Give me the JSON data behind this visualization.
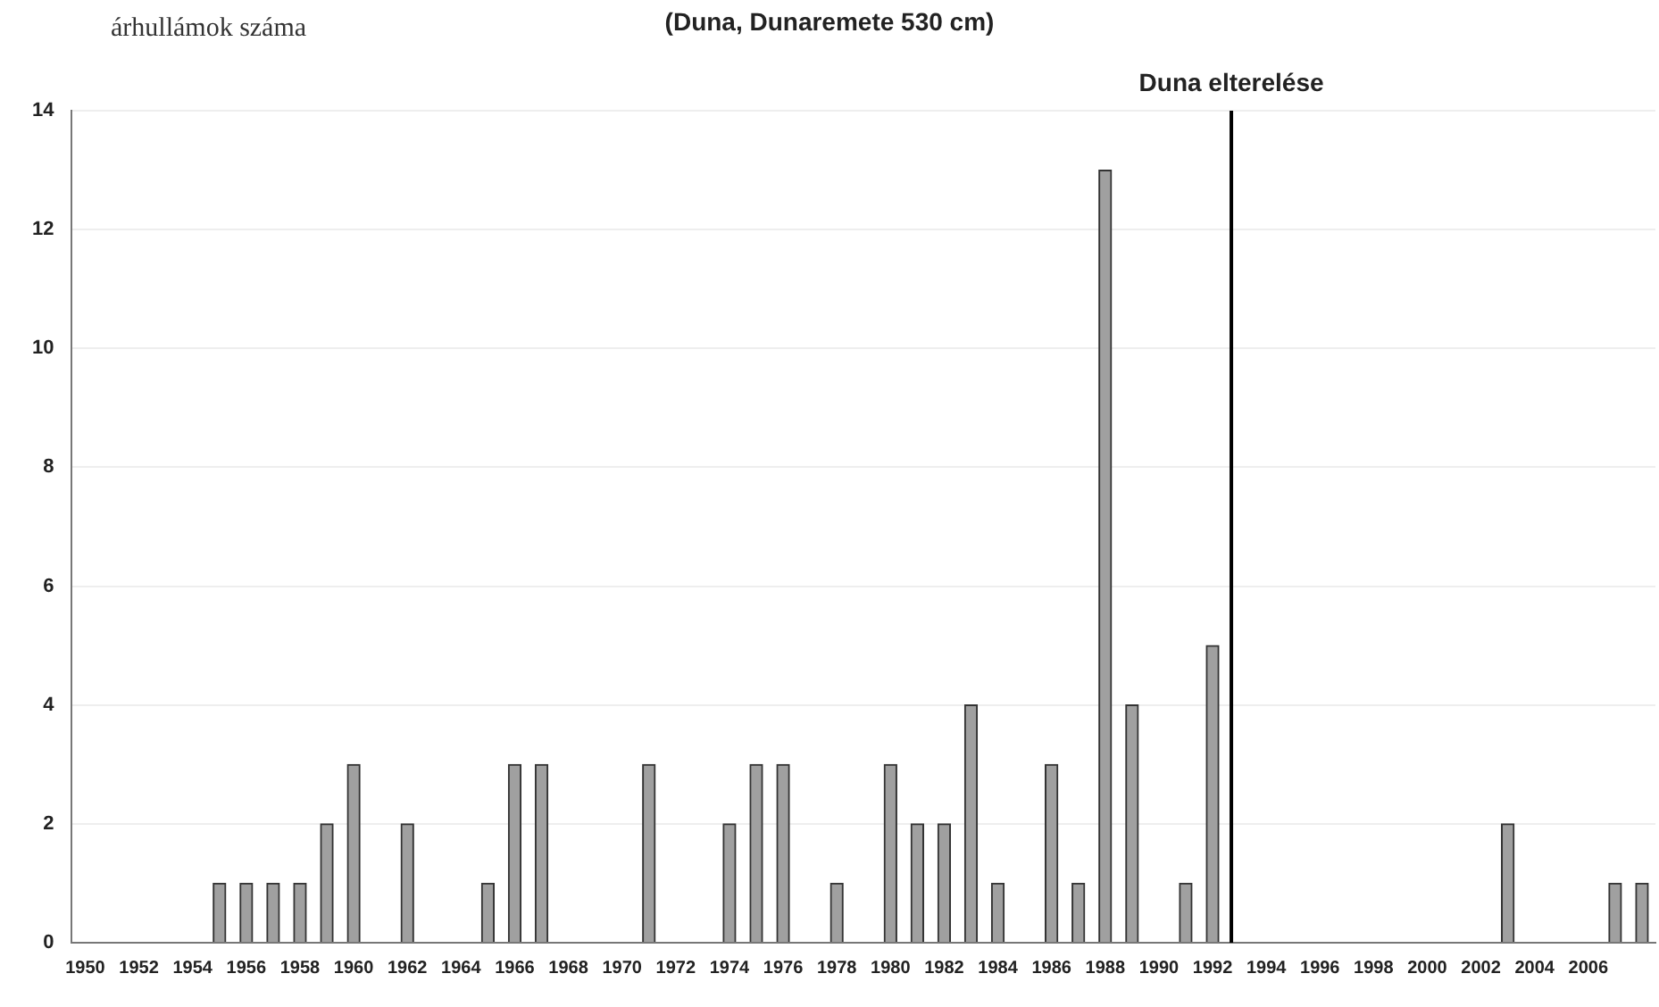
{
  "chart_data": {
    "type": "bar",
    "title": "(Duna, Dunaremete 530 cm)",
    "ylabel": "árhullámok száma",
    "x": [
      1950,
      1951,
      1952,
      1953,
      1954,
      1955,
      1956,
      1957,
      1958,
      1959,
      1960,
      1961,
      1962,
      1963,
      1964,
      1965,
      1966,
      1967,
      1968,
      1969,
      1970,
      1971,
      1972,
      1973,
      1974,
      1975,
      1976,
      1977,
      1978,
      1979,
      1980,
      1981,
      1982,
      1983,
      1984,
      1985,
      1986,
      1987,
      1988,
      1989,
      1990,
      1991,
      1992,
      1993,
      1994,
      1995,
      1996,
      1997,
      1998,
      1999,
      2000,
      2001,
      2002,
      2003,
      2004,
      2005,
      2006,
      2007,
      2008
    ],
    "values": [
      0,
      0,
      0,
      0,
      0,
      1,
      1,
      1,
      1,
      2,
      3,
      0,
      2,
      0,
      0,
      1,
      3,
      3,
      0,
      0,
      0,
      3,
      0,
      0,
      2,
      3,
      3,
      0,
      1,
      0,
      3,
      2,
      2,
      4,
      1,
      0,
      3,
      1,
      13,
      4,
      0,
      1,
      5,
      0,
      0,
      0,
      0,
      0,
      0,
      0,
      0,
      0,
      0,
      2,
      0,
      0,
      0,
      1,
      1
    ],
    "color": "#a0a0a0",
    "xlim": [
      1949.5,
      2008.5
    ],
    "xticks": [
      1950,
      1952,
      1954,
      1956,
      1958,
      1960,
      1962,
      1964,
      1966,
      1968,
      1970,
      1972,
      1974,
      1976,
      1978,
      1980,
      1982,
      1984,
      1986,
      1988,
      1990,
      1992,
      1994,
      1996,
      1998,
      2000,
      2002,
      2004,
      2006
    ],
    "ylim": [
      0,
      14
    ],
    "yticks": [
      0,
      2,
      4,
      6,
      8,
      10,
      12,
      14
    ],
    "grid": "y",
    "legend": false,
    "ref_lines": [
      {
        "axis": "x",
        "value": 1992.7,
        "label": "Duna elterelése",
        "color": "#000000"
      }
    ]
  }
}
